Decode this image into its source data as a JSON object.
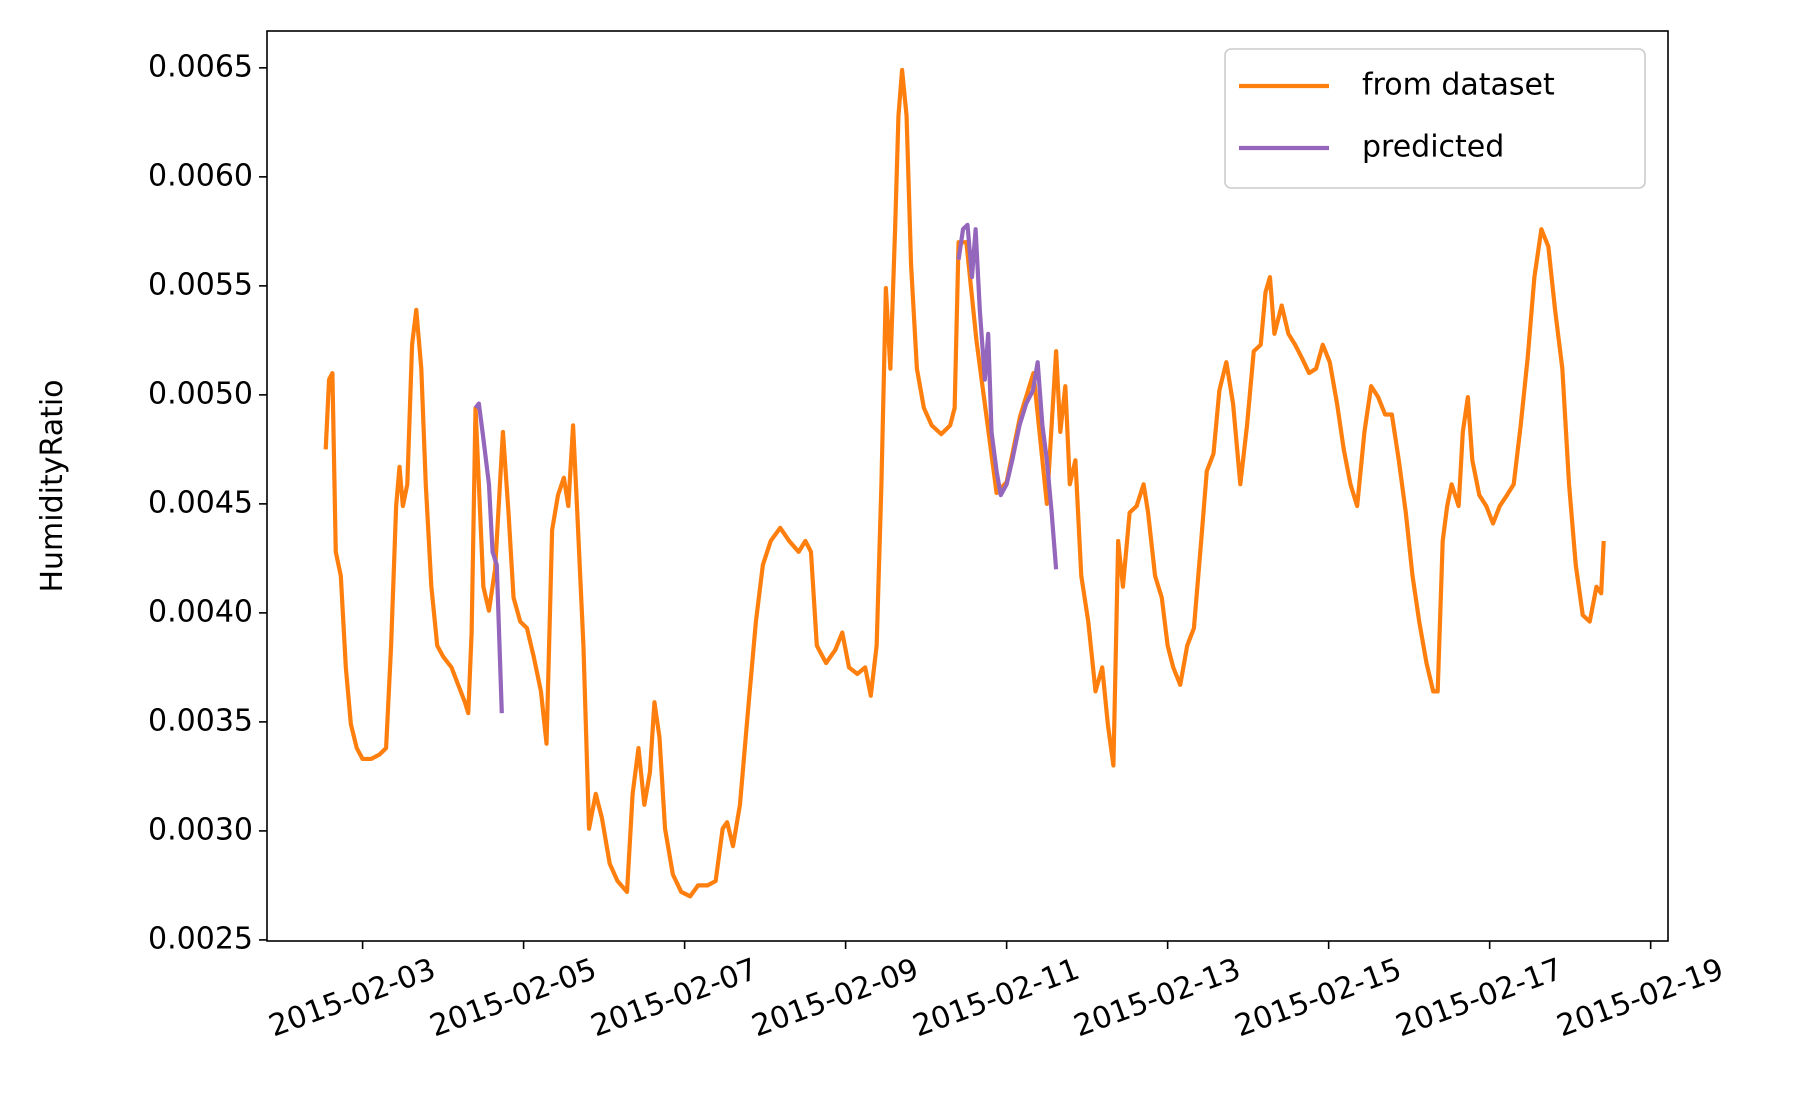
{
  "chart_data": {
    "type": "line",
    "y_label": "HumidityRatio",
    "xlim": [
      "2015-02-01T19:30",
      "2015-02-19T05:10"
    ],
    "ylim": [
      0.002495,
      0.006669
    ],
    "xticks": [
      "2015-02-03",
      "2015-02-05",
      "2015-02-07",
      "2015-02-09",
      "2015-02-11",
      "2015-02-13",
      "2015-02-15",
      "2015-02-17",
      "2015-02-19"
    ],
    "yticks": [
      {
        "value": 0.0025,
        "label": "0.0025"
      },
      {
        "value": 0.003,
        "label": "0.0030"
      },
      {
        "value": 0.0035,
        "label": "0.0035"
      },
      {
        "value": 0.004,
        "label": "0.0040"
      },
      {
        "value": 0.0045,
        "label": "0.0045"
      },
      {
        "value": 0.005,
        "label": "0.0050"
      },
      {
        "value": 0.0055,
        "label": "0.0055"
      },
      {
        "value": 0.006,
        "label": "0.0060"
      },
      {
        "value": 0.0065,
        "label": "0.0065"
      }
    ],
    "legend_position": "upper right",
    "series": [
      {
        "name": "from dataset",
        "color": "#ff7f0e",
        "x": [
          "2015-02-02T13:00",
          "2015-02-02T14:00",
          "2015-02-02T15:00",
          "2015-02-02T16:00",
          "2015-02-02T17:30",
          "2015-02-02T19:00",
          "2015-02-02T20:30",
          "2015-02-02T22:15",
          "2015-02-03T00:00",
          "2015-02-03T02:30",
          "2015-02-03T05:00",
          "2015-02-03T07:00",
          "2015-02-03T08:30",
          "2015-02-03T10:00",
          "2015-02-03T11:00",
          "2015-02-03T12:00",
          "2015-02-03T13:20",
          "2015-02-03T14:45",
          "2015-02-03T16:00",
          "2015-02-03T17:30",
          "2015-02-03T18:50",
          "2015-02-03T20:30",
          "2015-02-03T22:15",
          "2015-02-04T00:00",
          "2015-02-04T02:30",
          "2015-02-04T04:30",
          "2015-02-04T06:30",
          "2015-02-04T07:30",
          "2015-02-04T08:30",
          "2015-02-04T09:40",
          "2015-02-04T10:40",
          "2015-02-04T12:00",
          "2015-02-04T13:40",
          "2015-02-04T15:30",
          "2015-02-04T17:50",
          "2015-02-04T19:30",
          "2015-02-04T21:00",
          "2015-02-04T23:00",
          "2015-02-05T01:00",
          "2015-02-05T03:00",
          "2015-02-05T05:10",
          "2015-02-05T06:50",
          "2015-02-05T08:30",
          "2015-02-05T10:15",
          "2015-02-05T12:00",
          "2015-02-05T13:20",
          "2015-02-05T14:45",
          "2015-02-05T16:00",
          "2015-02-05T17:50",
          "2015-02-05T19:30",
          "2015-02-05T21:30",
          "2015-02-05T23:20",
          "2015-02-06T01:40",
          "2015-02-06T04:00",
          "2015-02-06T06:50",
          "2015-02-06T08:30",
          "2015-02-06T10:15",
          "2015-02-06T12:00",
          "2015-02-06T13:40",
          "2015-02-06T15:00",
          "2015-02-06T16:30",
          "2015-02-06T18:10",
          "2015-02-06T20:30",
          "2015-02-06T23:00",
          "2015-02-07T01:40",
          "2015-02-07T04:00",
          "2015-02-07T06:50",
          "2015-02-07T09:15",
          "2015-02-07T11:20",
          "2015-02-07T12:40",
          "2015-02-07T14:25",
          "2015-02-07T16:30",
          "2015-02-07T18:50",
          "2015-02-07T21:15",
          "2015-02-07T23:20",
          "2015-02-08T01:40",
          "2015-02-08T04:30",
          "2015-02-08T07:10",
          "2015-02-08T10:00",
          "2015-02-08T12:00",
          "2015-02-08T13:40",
          "2015-02-08T15:25",
          "2015-02-08T18:10",
          "2015-02-08T20:55",
          "2015-02-08T23:00",
          "2015-02-09T01:00",
          "2015-02-09T03:30",
          "2015-02-09T05:50",
          "2015-02-09T07:30",
          "2015-02-09T09:15",
          "2015-02-09T10:40",
          "2015-02-09T12:00",
          "2015-02-09T13:20",
          "2015-02-09T14:45",
          "2015-02-09T15:45",
          "2015-02-09T16:50",
          "2015-02-09T18:10",
          "2015-02-09T19:30",
          "2015-02-09T21:15",
          "2015-02-09T23:20",
          "2015-02-10T01:40",
          "2015-02-10T04:30",
          "2015-02-10T07:10",
          "2015-02-10T08:30",
          "2015-02-10T09:40",
          "2015-02-10T12:00",
          "2015-02-10T15:00",
          "2015-02-10T18:00",
          "2015-02-10T21:00",
          "2015-02-11T00:00",
          "2015-02-11T04:00",
          "2015-02-11T08:00",
          "2015-02-11T12:00",
          "2015-02-11T14:45",
          "2015-02-11T16:00",
          "2015-02-11T17:30",
          "2015-02-11T18:50",
          "2015-02-11T20:30",
          "2015-02-11T22:15",
          "2015-02-12T00:20",
          "2015-02-12T02:30",
          "2015-02-12T04:30",
          "2015-02-12T06:10",
          "2015-02-12T07:50",
          "2015-02-12T09:15",
          "2015-02-12T10:40",
          "2015-02-12T12:40",
          "2015-02-12T14:45",
          "2015-02-12T16:50",
          "2015-02-12T18:10",
          "2015-02-12T20:15",
          "2015-02-12T22:15",
          "2015-02-13T00:00",
          "2015-02-13T01:40",
          "2015-02-13T03:45",
          "2015-02-13T05:50",
          "2015-02-13T07:50",
          "2015-02-13T10:00",
          "2015-02-13T11:40",
          "2015-02-13T13:40",
          "2015-02-13T15:25",
          "2015-02-13T17:30",
          "2015-02-13T19:30",
          "2015-02-13T21:40",
          "2015-02-13T23:40",
          "2015-02-14T01:40",
          "2015-02-14T03:45",
          "2015-02-14T05:10",
          "2015-02-14T06:30",
          "2015-02-14T07:50",
          "2015-02-14T10:00",
          "2015-02-14T12:00",
          "2015-02-14T14:00",
          "2015-02-14T16:00",
          "2015-02-14T18:10",
          "2015-02-14T20:15",
          "2015-02-14T22:15",
          "2015-02-15T00:20",
          "2015-02-15T02:30",
          "2015-02-15T04:30",
          "2015-02-15T06:30",
          "2015-02-15T08:30",
          "2015-02-15T10:40",
          "2015-02-15T12:40",
          "2015-02-15T14:45",
          "2015-02-15T16:50",
          "2015-02-15T18:50",
          "2015-02-15T20:55",
          "2015-02-15T23:00",
          "2015-02-16T01:00",
          "2015-02-16T03:00",
          "2015-02-16T05:10",
          "2015-02-16T07:10",
          "2015-02-16T08:30",
          "2015-02-16T10:00",
          "2015-02-16T11:20",
          "2015-02-16T12:40",
          "2015-02-16T14:45",
          "2015-02-16T16:00",
          "2015-02-16T17:30",
          "2015-02-16T18:50",
          "2015-02-16T20:55",
          "2015-02-16T23:00",
          "2015-02-17T01:00",
          "2015-02-17T03:00",
          "2015-02-17T05:10",
          "2015-02-17T07:10",
          "2015-02-17T09:15",
          "2015-02-17T11:20",
          "2015-02-17T13:20",
          "2015-02-17T15:25",
          "2015-02-17T17:30",
          "2015-02-17T19:30",
          "2015-02-17T21:40",
          "2015-02-17T23:40",
          "2015-02-18T01:40",
          "2015-02-18T03:45",
          "2015-02-18T05:50",
          "2015-02-18T07:50",
          "2015-02-18T09:15",
          "2015-02-18T10:00"
        ],
        "values": [
          0.00475,
          0.00507,
          0.0051,
          0.00428,
          0.00417,
          0.00375,
          0.00349,
          0.00338,
          0.00333,
          0.00333,
          0.00335,
          0.00338,
          0.00385,
          0.00449,
          0.00467,
          0.00449,
          0.00459,
          0.00523,
          0.00539,
          0.00512,
          0.00459,
          0.00412,
          0.00385,
          0.0038,
          0.00375,
          0.00367,
          0.00359,
          0.00354,
          0.00391,
          0.00494,
          0.00459,
          0.00412,
          0.00401,
          0.0042,
          0.00483,
          0.00446,
          0.00407,
          0.00396,
          0.00393,
          0.0038,
          0.00364,
          0.0034,
          0.00438,
          0.00454,
          0.00462,
          0.00449,
          0.00486,
          0.00446,
          0.00385,
          0.00301,
          0.00317,
          0.00306,
          0.00285,
          0.00277,
          0.00272,
          0.00317,
          0.00338,
          0.00312,
          0.00327,
          0.00359,
          0.00343,
          0.00301,
          0.0028,
          0.00272,
          0.0027,
          0.00275,
          0.00275,
          0.00277,
          0.00301,
          0.00304,
          0.00293,
          0.00312,
          0.00354,
          0.00396,
          0.00422,
          0.00433,
          0.00439,
          0.00433,
          0.00428,
          0.00433,
          0.00428,
          0.00385,
          0.00377,
          0.00383,
          0.00391,
          0.00375,
          0.00372,
          0.00375,
          0.00362,
          0.00385,
          0.00459,
          0.00549,
          0.00512,
          0.00576,
          0.00628,
          0.00649,
          0.00628,
          0.0056,
          0.00512,
          0.00494,
          0.00486,
          0.00482,
          0.00486,
          0.00494,
          0.0057,
          0.0057,
          0.00525,
          0.0049,
          0.00455,
          0.0046,
          0.0049,
          0.0051,
          0.0045,
          0.0052,
          0.00483,
          0.00504,
          0.00459,
          0.0047,
          0.00417,
          0.00396,
          0.00364,
          0.00375,
          0.00349,
          0.0033,
          0.00433,
          0.00412,
          0.00446,
          0.00449,
          0.00459,
          0.00446,
          0.00417,
          0.00407,
          0.00385,
          0.00375,
          0.00367,
          0.00385,
          0.00393,
          0.00433,
          0.00465,
          0.00473,
          0.00502,
          0.00515,
          0.00496,
          0.00459,
          0.00486,
          0.0052,
          0.00523,
          0.00547,
          0.00554,
          0.00528,
          0.00541,
          0.00528,
          0.00523,
          0.00517,
          0.0051,
          0.00512,
          0.00523,
          0.00515,
          0.00496,
          0.00475,
          0.00459,
          0.00449,
          0.00483,
          0.00504,
          0.00499,
          0.00491,
          0.00491,
          0.0047,
          0.00446,
          0.00417,
          0.00396,
          0.00377,
          0.00364,
          0.00364,
          0.00433,
          0.00449,
          0.00459,
          0.00449,
          0.00483,
          0.00499,
          0.0047,
          0.00454,
          0.00449,
          0.00441,
          0.00449,
          0.00454,
          0.00459,
          0.00486,
          0.00517,
          0.00554,
          0.00576,
          0.00568,
          0.00539,
          0.00512,
          0.00459,
          0.00422,
          0.00399,
          0.00396,
          0.00412,
          0.00409,
          0.00433
        ]
      },
      {
        "name": "predicted",
        "color": "#9467bd",
        "x": [
          "2015-02-04T09:40",
          "2015-02-04T10:40",
          "2015-02-04T12:00",
          "2015-02-04T13:40",
          "2015-02-04T14:45",
          "2015-02-04T16:00",
          "2015-02-04T17:30",
          "2015-02-07T12:00",
          "2015-02-10T09:40",
          "2015-02-10T11:00",
          "2015-02-10T12:20",
          "2015-02-10T13:40",
          "2015-02-10T14:45",
          "2015-02-10T16:00",
          "2015-02-10T17:30",
          "2015-02-10T18:30",
          "2015-02-10T19:30",
          "2015-02-10T21:00",
          "2015-02-10T22:15",
          "2015-02-11T00:00",
          "2015-02-11T01:40",
          "2015-02-11T03:50",
          "2015-02-11T05:50",
          "2015-02-11T07:50",
          "2015-02-11T09:15",
          "2015-02-11T10:40",
          "2015-02-11T12:00",
          "2015-02-11T13:25",
          "2015-02-11T14:45"
        ],
        "values": [
          0.00494,
          0.00496,
          0.0048,
          0.00459,
          0.00428,
          0.00422,
          0.00354,
          null,
          0.00562,
          0.00576,
          0.00578,
          0.00554,
          0.00576,
          0.00539,
          0.00507,
          0.00528,
          0.00483,
          0.00465,
          0.00454,
          0.00459,
          0.0047,
          0.00486,
          0.00496,
          0.00502,
          0.00515,
          0.00486,
          0.0047,
          0.00446,
          0.0042
        ]
      }
    ]
  }
}
